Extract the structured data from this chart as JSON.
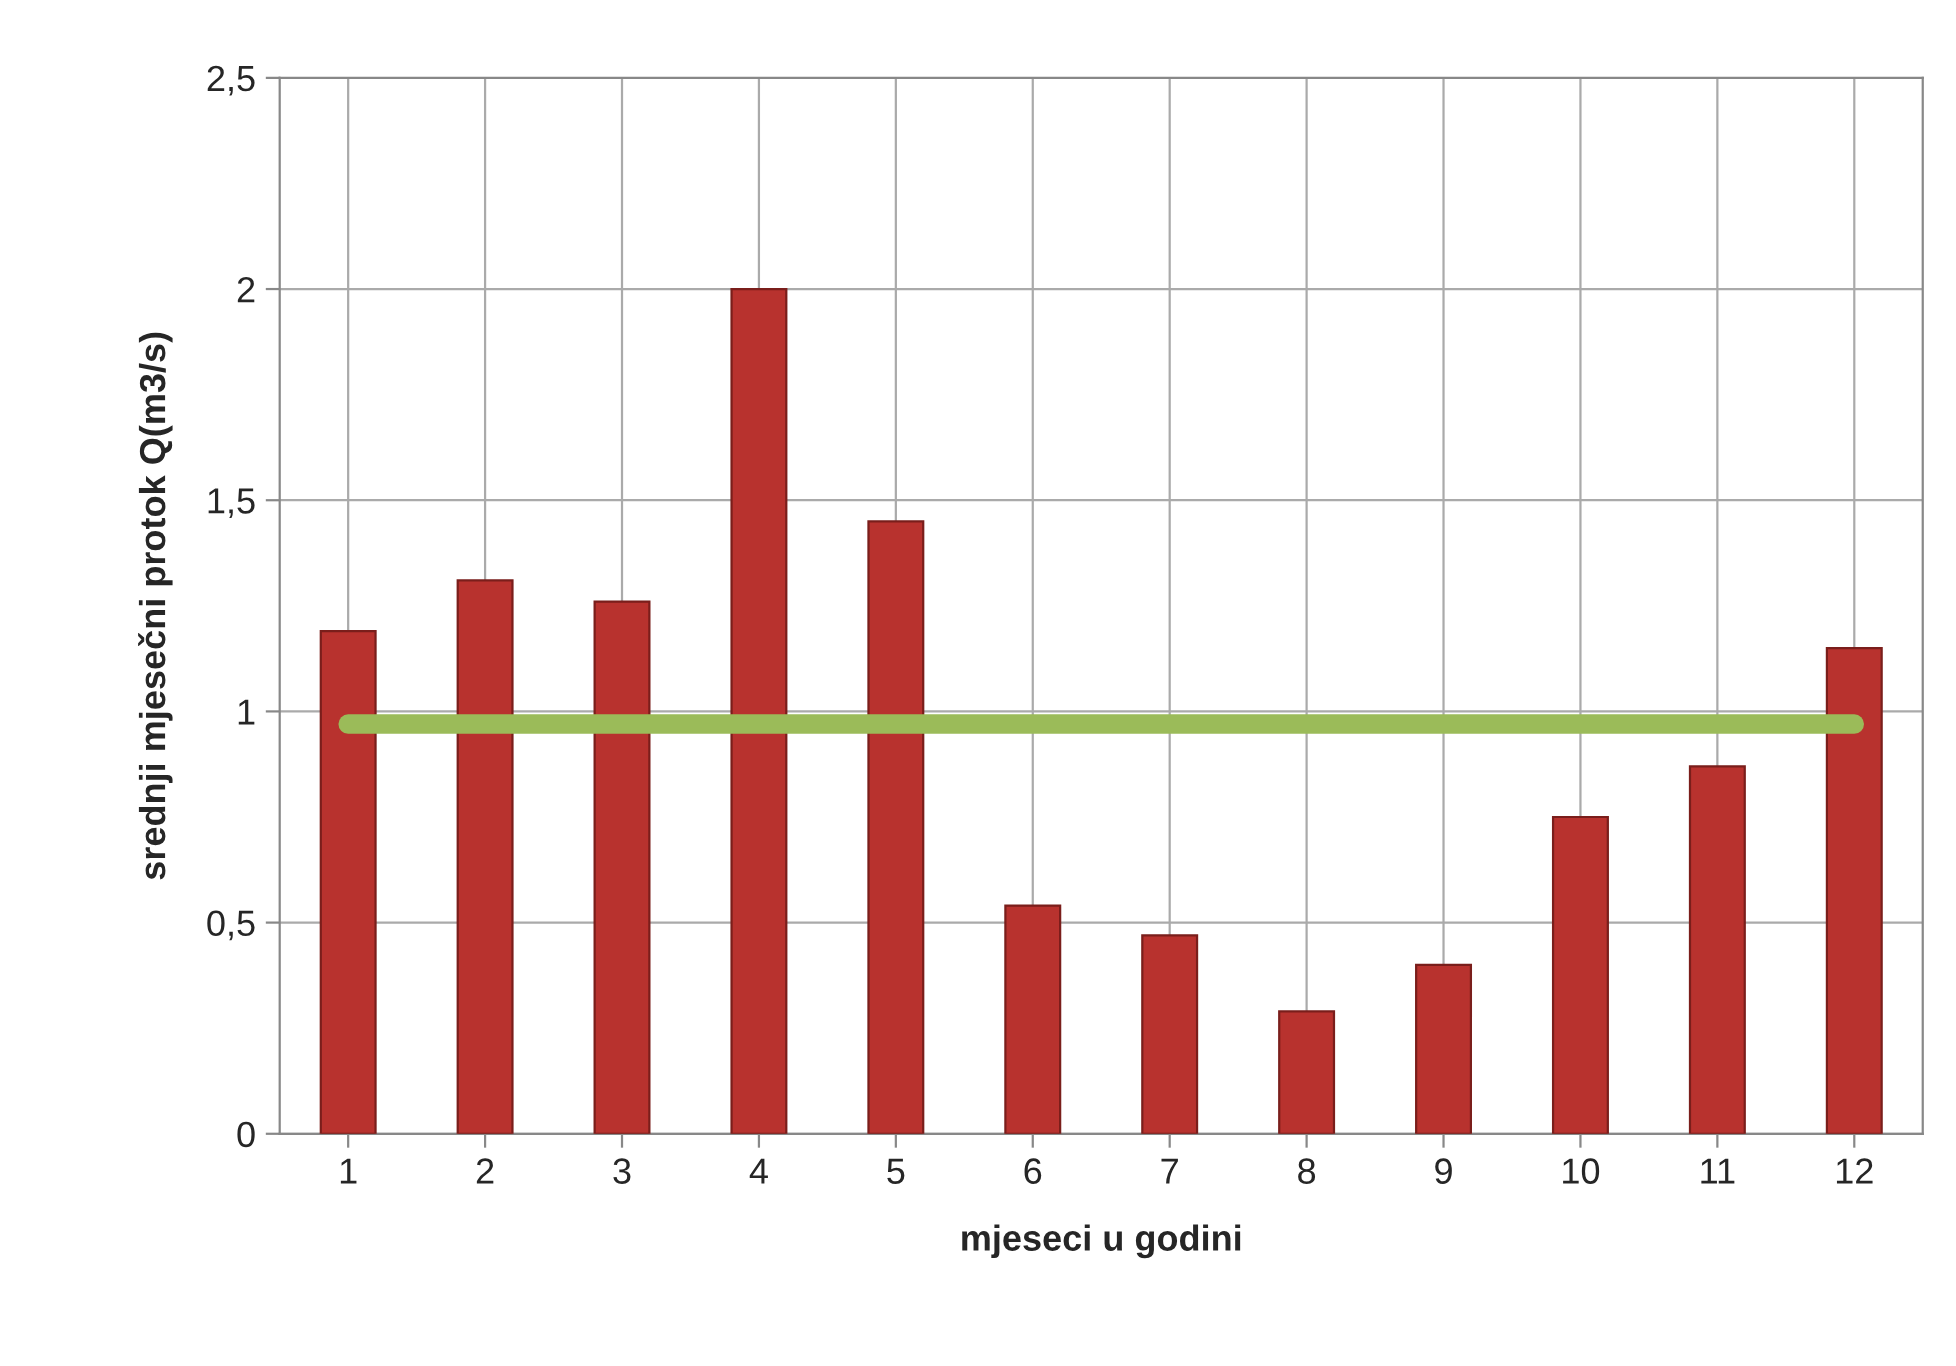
{
  "chart_data": {
    "type": "bar",
    "xlabel": "mjeseci u godini",
    "ylabel": "srednji mjesečni protok Q(m3/s)",
    "categories": [
      "1",
      "2",
      "3",
      "4",
      "5",
      "6",
      "7",
      "8",
      "9",
      "10",
      "11",
      "12"
    ],
    "series": [
      {
        "color": "#b8322e",
        "values": [
          1.19,
          1.31,
          1.26,
          2.0,
          1.45,
          0.54,
          0.47,
          0.29,
          0.4,
          0.75,
          0.87,
          1.15
        ]
      },
      {
        "type": "line",
        "color": "#9bbb59",
        "values": [
          0.97,
          0.97,
          0.97,
          0.97,
          0.97,
          0.97,
          0.97,
          0.97,
          0.97,
          0.97,
          0.97,
          0.97
        ]
      }
    ],
    "ylim": [
      0,
      2.5
    ],
    "yticks": [
      0,
      {
        "value": 0.5,
        "label": "0,5"
      },
      1,
      {
        "value": 1.5,
        "label": "1,5"
      },
      2,
      {
        "value": 2.5,
        "label": "2,5"
      }
    ],
    "grid": true,
    "legend": false
  }
}
